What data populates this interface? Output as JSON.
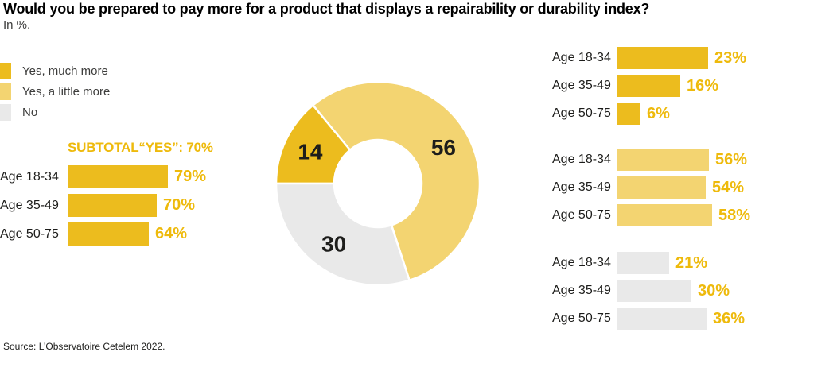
{
  "title": "Would you be prepared to pay more for a product that displays a repairability or durability index?",
  "subtitle": "In %.",
  "source": "Source: L’Observatoire Cetelem 2022.",
  "colors": {
    "yes_much_more": "#ecbc1e",
    "yes_little_more": "#f3d471",
    "no": "#e9e9e9",
    "value_text": "#eeba0c",
    "label_text": "#1d1d1b"
  },
  "legend": {
    "items": [
      {
        "label": "Yes, much more",
        "color_key": "yes_much_more"
      },
      {
        "label": "Yes, a little more",
        "color_key": "yes_little_more"
      },
      {
        "label": "No",
        "color_key": "no"
      }
    ]
  },
  "subtotal": {
    "label": "SUBTOTAL“YES”: 70%"
  },
  "chart_data": [
    {
      "type": "bar",
      "series": "Subtotal “Yes”: 70%",
      "categories": [
        "Age 18-34",
        "Age 35-49",
        "Age 50-75"
      ],
      "values": [
        79,
        70,
        64
      ],
      "unit": "%",
      "color_key": "yes_much_more"
    },
    {
      "type": "pie",
      "subtype": "donut",
      "labels": [
        "Yes, much more",
        "Yes, a little more",
        "No"
      ],
      "values": [
        14,
        56,
        30
      ],
      "color_keys": [
        "yes_much_more",
        "yes_little_more",
        "no"
      ],
      "start_angle_deg": 270,
      "direction": "clockwise"
    },
    {
      "type": "bar",
      "series": "Yes, much more",
      "categories": [
        "Age 18-34",
        "Age 35-49",
        "Age 50-75"
      ],
      "values": [
        23,
        16,
        6
      ],
      "unit": "%",
      "color_key": "yes_much_more"
    },
    {
      "type": "bar",
      "series": "Yes, a little more",
      "categories": [
        "Age 18-34",
        "Age 35-49",
        "Age 50-75"
      ],
      "values": [
        56,
        54,
        58
      ],
      "unit": "%",
      "color_key": "yes_little_more"
    },
    {
      "type": "bar",
      "series": "No",
      "categories": [
        "Age 18-34",
        "Age 35-49",
        "Age 50-75"
      ],
      "values": [
        21,
        30,
        36
      ],
      "unit": "%",
      "color_key": "no"
    }
  ]
}
